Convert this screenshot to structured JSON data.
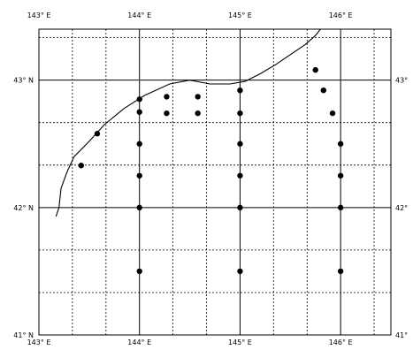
{
  "map": {
    "lon_range": [
      143,
      146.5
    ],
    "lat_range": [
      41,
      43.4
    ],
    "top_labels": [
      "143° E",
      "144° E",
      "145° E",
      "146° E"
    ],
    "bottom_labels": [
      "143° E",
      "144° E",
      "145° E",
      "146° E"
    ],
    "left_labels": [
      "43° N",
      "42° N",
      "41° N"
    ],
    "right_labels": [
      "43°",
      "42°",
      "41°"
    ],
    "major_lon": [
      144,
      145,
      146
    ],
    "major_lat": [
      42,
      43
    ],
    "minor_lon": [
      143.333,
      143.667,
      144.333,
      144.667,
      145.333,
      145.667,
      146.333
    ],
    "minor_lat": [
      41.333,
      41.667,
      42.333,
      42.667,
      43.333
    ],
    "stations": [
      {
        "lon": 144.0,
        "lat": 42.85
      },
      {
        "lon": 144.0,
        "lat": 42.75
      },
      {
        "lon": 144.27,
        "lat": 42.87
      },
      {
        "lon": 144.27,
        "lat": 42.74
      },
      {
        "lon": 144.58,
        "lat": 42.87
      },
      {
        "lon": 144.58,
        "lat": 42.74
      },
      {
        "lon": 145.0,
        "lat": 42.92
      },
      {
        "lon": 145.0,
        "lat": 42.74
      },
      {
        "lon": 145.75,
        "lat": 43.08
      },
      {
        "lon": 145.83,
        "lat": 42.92
      },
      {
        "lon": 145.92,
        "lat": 42.74
      },
      {
        "lon": 143.58,
        "lat": 42.58
      },
      {
        "lon": 143.42,
        "lat": 42.33
      },
      {
        "lon": 144.0,
        "lat": 42.5
      },
      {
        "lon": 144.0,
        "lat": 42.25
      },
      {
        "lon": 144.0,
        "lat": 42.0
      },
      {
        "lon": 144.0,
        "lat": 41.5
      },
      {
        "lon": 145.0,
        "lat": 42.5
      },
      {
        "lon": 145.0,
        "lat": 42.25
      },
      {
        "lon": 145.0,
        "lat": 42.0
      },
      {
        "lon": 145.0,
        "lat": 41.5
      },
      {
        "lon": 146.0,
        "lat": 42.5
      },
      {
        "lon": 146.0,
        "lat": 42.25
      },
      {
        "lon": 146.0,
        "lat": 42.0
      },
      {
        "lon": 146.0,
        "lat": 41.5
      }
    ],
    "coastline": [
      [
        143.17,
        41.93
      ],
      [
        143.2,
        42.0
      ],
      [
        143.22,
        42.15
      ],
      [
        143.28,
        42.28
      ],
      [
        143.35,
        42.4
      ],
      [
        143.5,
        42.52
      ],
      [
        143.65,
        42.65
      ],
      [
        143.85,
        42.78
      ],
      [
        144.05,
        42.88
      ],
      [
        144.3,
        42.97
      ],
      [
        144.5,
        43.0
      ],
      [
        144.7,
        42.97
      ],
      [
        144.9,
        42.97
      ],
      [
        145.05,
        42.99
      ],
      [
        145.2,
        43.05
      ],
      [
        145.35,
        43.12
      ],
      [
        145.5,
        43.2
      ],
      [
        145.65,
        43.28
      ],
      [
        145.75,
        43.35
      ],
      [
        145.8,
        43.4
      ]
    ]
  }
}
